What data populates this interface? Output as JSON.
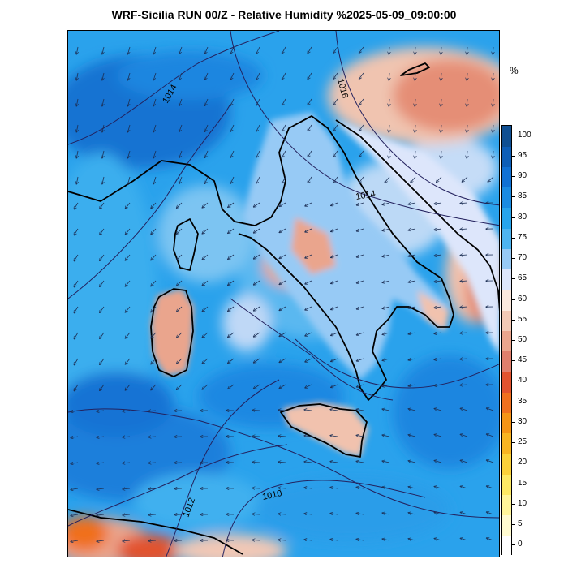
{
  "title": "WRF-Sicilia RUN 00/Z - Relative Humidity %2025-05-09_09:00:00",
  "colorbar": {
    "unit": "%",
    "levels": [
      0,
      5,
      10,
      15,
      20,
      25,
      30,
      35,
      40,
      45,
      50,
      55,
      60,
      65,
      70,
      75,
      80,
      85,
      90,
      95,
      100
    ],
    "colors": [
      "#ffffff",
      "#fffbd0",
      "#fff59a",
      "#fde964",
      "#fbd13a",
      "#f8b422",
      "#f59416",
      "#f0701e",
      "#e2532e",
      "#e07f6c",
      "#eaa58d",
      "#f2c9b6",
      "#fbe9de",
      "#dde6fb",
      "#97caf5",
      "#4eb4f0",
      "#27a4ec",
      "#1a8be2",
      "#1071d4",
      "#0d5eb7",
      "#0f4f92"
    ]
  },
  "isobars": [
    {
      "label": "1014"
    },
    {
      "label": "1016"
    },
    {
      "label": "1014"
    },
    {
      "label": "1012"
    },
    {
      "label": "1010"
    }
  ]
}
